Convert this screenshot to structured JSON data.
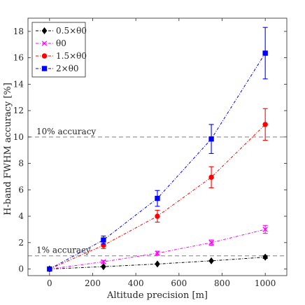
{
  "chart_data": {
    "type": "line",
    "xlabel": "Altitude precision [m]",
    "ylabel": "H-band FWHM accuracy [%]",
    "xlim": [
      -100,
      1100
    ],
    "ylim": [
      -0.5,
      19
    ],
    "xticks": [
      0,
      200,
      400,
      600,
      800,
      1000
    ],
    "yticks": [
      0,
      2,
      4,
      6,
      8,
      10,
      12,
      14,
      16,
      18
    ],
    "grid": false,
    "legend_position": "top-left",
    "x": [
      0,
      250,
      500,
      750,
      1000
    ],
    "series": [
      {
        "name": "0.5×θ0",
        "color": "#000000",
        "marker": "diamond",
        "line": "dash-dot",
        "values": [
          0,
          0.18,
          0.38,
          0.62,
          0.9
        ],
        "errors": [
          0.05,
          0.05,
          0.05,
          0.06,
          0.1
        ]
      },
      {
        "name": "θ0",
        "color": "#ff00ff",
        "marker": "x",
        "line": "dash-dot",
        "values": [
          0,
          0.55,
          1.2,
          2.0,
          3.0
        ],
        "errors": [
          0.05,
          0.1,
          0.15,
          0.2,
          0.3
        ]
      },
      {
        "name": "1.5×θ0",
        "color": "#ff0000",
        "marker": "circle",
        "line": "dash-dot",
        "values": [
          0,
          1.8,
          4.0,
          6.95,
          10.95
        ],
        "errors": [
          0.05,
          0.25,
          0.45,
          0.8,
          1.2
        ]
      },
      {
        "name": "2×θ0",
        "color": "#0000ff",
        "marker": "square",
        "line": "dash-dot",
        "values": [
          0,
          2.2,
          5.35,
          9.85,
          16.35
        ],
        "errors": [
          0.05,
          0.3,
          0.6,
          1.1,
          1.95
        ]
      }
    ],
    "reference_lines": [
      {
        "y": 10,
        "label": "10% accuracy",
        "color": "#808080"
      },
      {
        "y": 1,
        "label": "1% accuracy",
        "color": "#808080"
      }
    ]
  }
}
